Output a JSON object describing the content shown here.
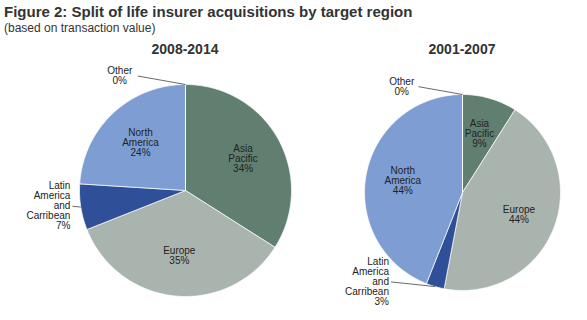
{
  "title": "Figure 2: Split of life insurer acquisitions by target region",
  "subtitle": "(based on transaction value)",
  "chart_data": [
    {
      "type": "pie",
      "title": "2008-2014",
      "categories": [
        "Asia Pacific",
        "Europe",
        "Latin America and Carribean",
        "North America",
        "Other"
      ],
      "values": [
        34,
        35,
        7,
        24,
        0
      ],
      "value_labels": [
        "34%",
        "35%",
        "7%",
        "24%",
        "0%"
      ],
      "colors": [
        "#617f70",
        "#aab4ae",
        "#2f4f99",
        "#7e9ed3",
        "#8ecfe6"
      ],
      "data_labels": true
    },
    {
      "type": "pie",
      "title": "2001-2007",
      "categories": [
        "Asia Pacific",
        "Europe",
        "Latin America and Carribean",
        "North America",
        "Other"
      ],
      "values": [
        9,
        44,
        3,
        44,
        0
      ],
      "value_labels": [
        "9%",
        "44%",
        "3%",
        "44%",
        "0%"
      ],
      "colors": [
        "#617f70",
        "#aab4ae",
        "#2f4f99",
        "#7e9ed3",
        "#8ecfe6"
      ],
      "data_labels": true
    }
  ]
}
